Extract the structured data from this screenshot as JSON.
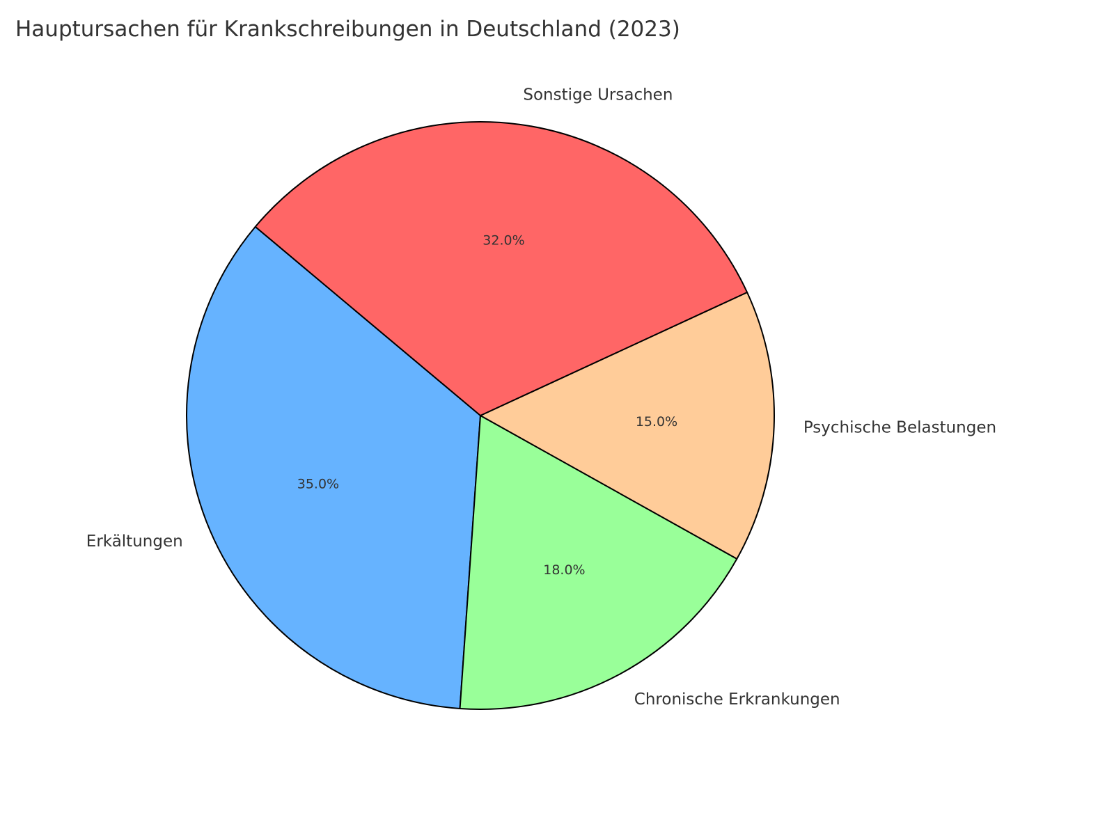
{
  "chart_data": {
    "type": "pie",
    "title": "Hauptursachen für Krankschreibungen in Deutschland (2023)",
    "categories": [
      "Erkältungen",
      "Chronische Erkrankungen",
      "Psychische Belastungen",
      "Sonstige Ursachen"
    ],
    "values": [
      35,
      18,
      15,
      32
    ],
    "value_labels": [
      "35.0%",
      "18.0%",
      "15.0%",
      "32.0%"
    ],
    "colors": [
      "#66b3ff",
      "#99ff99",
      "#ffcc99",
      "#ff6666"
    ],
    "start_angle": 140
  }
}
